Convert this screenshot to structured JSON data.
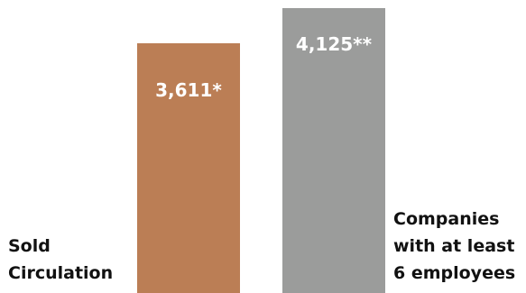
{
  "chart_data": {
    "type": "bar",
    "categories": [
      "Sold Circulation",
      "Companies with at least 6 employees"
    ],
    "values": [
      3611,
      4125
    ],
    "data_labels": [
      "3,611*",
      "4,125**"
    ],
    "ylim": [
      0,
      4125
    ],
    "grid": false,
    "legend": "none",
    "colors": [
      "#BB7E55",
      "#9B9C9B"
    ],
    "category_label_lines": [
      [
        "Sold",
        "Circulation"
      ],
      [
        "Companies",
        "with at least",
        "6 employees"
      ]
    ]
  }
}
